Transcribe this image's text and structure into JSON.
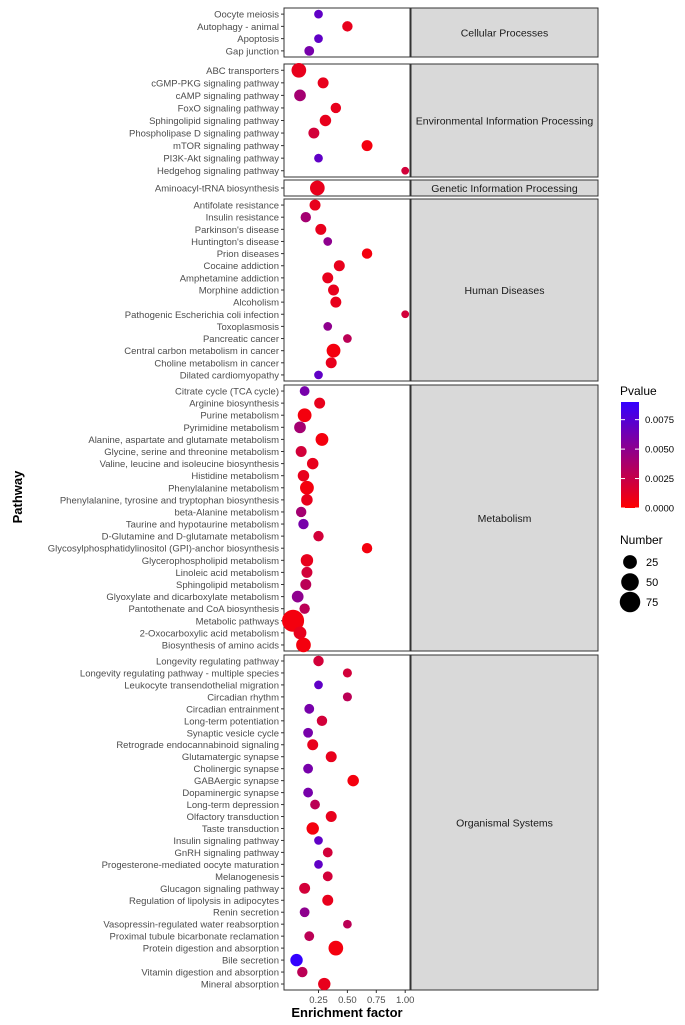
{
  "chart_data": {
    "type": "scatter",
    "title": "",
    "xlabel": "Enrichment factor",
    "ylabel": "Pathway",
    "xlim": [
      0.0,
      1.0
    ],
    "xticks": [
      0.25,
      0.5,
      0.75,
      1.0
    ],
    "xtick_labels": [
      "0.25",
      "0.50",
      "0.75",
      "1.00"
    ],
    "grid": false,
    "color_legend": {
      "title": "Pvalue",
      "min": 0.0,
      "max": 0.009,
      "ticks": [
        0.0,
        0.0025,
        0.005,
        0.0075
      ],
      "tick_labels": [
        "0.0000",
        "0.0025",
        "0.0050",
        "0.0075"
      ],
      "low_color": "#ff0000",
      "high_color": "#3300ff"
    },
    "size_legend": {
      "title": "Number",
      "values": [
        25,
        50,
        75
      ],
      "labels": [
        "25",
        "50",
        "75"
      ]
    },
    "panels": [
      {
        "name": "Cellular Processes",
        "pathways": [
          {
            "name": "Oocyte meiosis",
            "ef": 0.25,
            "p": 0.007,
            "n": 5
          },
          {
            "name": "Autophagy - animal",
            "ef": 0.5,
            "p": 0.001,
            "n": 10
          },
          {
            "name": "Apoptosis",
            "ef": 0.25,
            "p": 0.007,
            "n": 5
          },
          {
            "name": "Gap junction",
            "ef": 0.17,
            "p": 0.006,
            "n": 8
          }
        ]
      },
      {
        "name": "Environmental Information Processing",
        "pathways": [
          {
            "name": "ABC transporters",
            "ef": 0.08,
            "p": 0.001,
            "n": 30
          },
          {
            "name": "cGMP-PKG signaling pathway",
            "ef": 0.29,
            "p": 0.001,
            "n": 12
          },
          {
            "name": "cAMP signaling pathway",
            "ef": 0.09,
            "p": 0.004,
            "n": 15
          },
          {
            "name": "FoxO signaling pathway",
            "ef": 0.4,
            "p": 0.001,
            "n": 10
          },
          {
            "name": "Sphingolipid signaling pathway",
            "ef": 0.31,
            "p": 0.001,
            "n": 14
          },
          {
            "name": "Phospholipase D signaling pathway",
            "ef": 0.21,
            "p": 0.002,
            "n": 12
          },
          {
            "name": "mTOR signaling pathway",
            "ef": 0.67,
            "p": 0.0005,
            "n": 12
          },
          {
            "name": "PI3K-Akt signaling pathway",
            "ef": 0.25,
            "p": 0.007,
            "n": 5
          },
          {
            "name": "Hedgehog signaling pathway",
            "ef": 1.0,
            "p": 0.002,
            "n": 3
          }
        ]
      },
      {
        "name": "Genetic Information Processing",
        "pathways": [
          {
            "name": "Aminoacyl-tRNA biosynthesis",
            "ef": 0.24,
            "p": 0.001,
            "n": 30
          }
        ]
      },
      {
        "name": "Human Diseases",
        "pathways": [
          {
            "name": "Antifolate resistance",
            "ef": 0.22,
            "p": 0.001,
            "n": 12
          },
          {
            "name": "Insulin resistance",
            "ef": 0.14,
            "p": 0.004,
            "n": 10
          },
          {
            "name": "Parkinson's disease",
            "ef": 0.27,
            "p": 0.001,
            "n": 12
          },
          {
            "name": "Huntington's disease",
            "ef": 0.33,
            "p": 0.005,
            "n": 5
          },
          {
            "name": "Prion diseases",
            "ef": 0.67,
            "p": 0.0005,
            "n": 10
          },
          {
            "name": "Cocaine addiction",
            "ef": 0.43,
            "p": 0.001,
            "n": 12
          },
          {
            "name": "Amphetamine addiction",
            "ef": 0.33,
            "p": 0.001,
            "n": 12
          },
          {
            "name": "Morphine addiction",
            "ef": 0.38,
            "p": 0.001,
            "n": 12
          },
          {
            "name": "Alcoholism",
            "ef": 0.4,
            "p": 0.001,
            "n": 12
          },
          {
            "name": "Pathogenic Escherichia coli infection",
            "ef": 1.0,
            "p": 0.002,
            "n": 3
          },
          {
            "name": "Toxoplasmosis",
            "ef": 0.33,
            "p": 0.005,
            "n": 5
          },
          {
            "name": "Pancreatic cancer",
            "ef": 0.5,
            "p": 0.003,
            "n": 5
          },
          {
            "name": "Central carbon metabolism in cancer",
            "ef": 0.38,
            "p": 0.0005,
            "n": 25
          },
          {
            "name": "Choline metabolism in cancer",
            "ef": 0.36,
            "p": 0.001,
            "n": 12
          },
          {
            "name": "Dilated cardiomyopathy",
            "ef": 0.25,
            "p": 0.007,
            "n": 5
          }
        ]
      },
      {
        "name": "Metabolism",
        "pathways": [
          {
            "name": "Citrate cycle (TCA cycle)",
            "ef": 0.13,
            "p": 0.006,
            "n": 8
          },
          {
            "name": "Arginine biosynthesis",
            "ef": 0.26,
            "p": 0.001,
            "n": 12
          },
          {
            "name": "Purine metabolism",
            "ef": 0.13,
            "p": 0.0005,
            "n": 25
          },
          {
            "name": "Pyrimidine metabolism",
            "ef": 0.09,
            "p": 0.004,
            "n": 15
          },
          {
            "name": "Alanine, aspartate and glutamate metabolism",
            "ef": 0.28,
            "p": 0.0005,
            "n": 20
          },
          {
            "name": "Glycine, serine and threonine metabolism",
            "ef": 0.1,
            "p": 0.002,
            "n": 12
          },
          {
            "name": "Valine, leucine and isoleucine biosynthesis",
            "ef": 0.2,
            "p": 0.001,
            "n": 14
          },
          {
            "name": "Histidine metabolism",
            "ef": 0.12,
            "p": 0.001,
            "n": 14
          },
          {
            "name": "Phenylalanine metabolism",
            "ef": 0.15,
            "p": 0.0005,
            "n": 25
          },
          {
            "name": "Phenylalanine, tyrosine and tryptophan biosynthesis",
            "ef": 0.15,
            "p": 0.001,
            "n": 14
          },
          {
            "name": "beta-Alanine metabolism",
            "ef": 0.1,
            "p": 0.004,
            "n": 10
          },
          {
            "name": "Taurine and hypotaurine metabolism",
            "ef": 0.12,
            "p": 0.006,
            "n": 10
          },
          {
            "name": "D-Glutamine and D-glutamate metabolism",
            "ef": 0.25,
            "p": 0.002,
            "n": 10
          },
          {
            "name": "Glycosylphosphatidylinositol (GPI)-anchor biosynthesis",
            "ef": 0.67,
            "p": 0.0005,
            "n": 10
          },
          {
            "name": "Glycerophospholipid metabolism",
            "ef": 0.15,
            "p": 0.001,
            "n": 18
          },
          {
            "name": "Linoleic acid metabolism",
            "ef": 0.15,
            "p": 0.002,
            "n": 12
          },
          {
            "name": "Sphingolipid metabolism",
            "ef": 0.14,
            "p": 0.003,
            "n": 12
          },
          {
            "name": "Glyoxylate and dicarboxylate metabolism",
            "ef": 0.07,
            "p": 0.005,
            "n": 15
          },
          {
            "name": "Pantothenate and CoA biosynthesis",
            "ef": 0.13,
            "p": 0.003,
            "n": 10
          },
          {
            "name": "Metabolic pathways",
            "ef": 0.03,
            "p": 0.0005,
            "n": 90
          },
          {
            "name": "2-Oxocarboxylic acid metabolism",
            "ef": 0.09,
            "p": 0.001,
            "n": 20
          },
          {
            "name": "Biosynthesis of amino acids",
            "ef": 0.12,
            "p": 0.0005,
            "n": 30
          }
        ]
      },
      {
        "name": "Organismal Systems",
        "pathways": [
          {
            "name": "Longevity regulating pathway",
            "ef": 0.25,
            "p": 0.002,
            "n": 10
          },
          {
            "name": "Longevity regulating pathway - multiple species",
            "ef": 0.5,
            "p": 0.002,
            "n": 6
          },
          {
            "name": "Leukocyte transendothelial migration",
            "ef": 0.25,
            "p": 0.007,
            "n": 5
          },
          {
            "name": "Circadian rhythm",
            "ef": 0.5,
            "p": 0.003,
            "n": 6
          },
          {
            "name": "Circadian entrainment",
            "ef": 0.17,
            "p": 0.006,
            "n": 8
          },
          {
            "name": "Long-term potentiation",
            "ef": 0.28,
            "p": 0.002,
            "n": 10
          },
          {
            "name": "Synaptic vesicle cycle",
            "ef": 0.16,
            "p": 0.006,
            "n": 8
          },
          {
            "name": "Retrograde endocannabinoid signaling",
            "ef": 0.2,
            "p": 0.001,
            "n": 12
          },
          {
            "name": "Glutamatergic synapse",
            "ef": 0.36,
            "p": 0.001,
            "n": 12
          },
          {
            "name": "Cholinergic synapse",
            "ef": 0.16,
            "p": 0.006,
            "n": 8
          },
          {
            "name": "GABAergic synapse",
            "ef": 0.55,
            "p": 0.0005,
            "n": 14
          },
          {
            "name": "Dopaminergic synapse",
            "ef": 0.16,
            "p": 0.006,
            "n": 8
          },
          {
            "name": "Long-term depression",
            "ef": 0.22,
            "p": 0.003,
            "n": 8
          },
          {
            "name": "Olfactory transduction",
            "ef": 0.36,
            "p": 0.001,
            "n": 12
          },
          {
            "name": "Taste transduction",
            "ef": 0.2,
            "p": 0.0005,
            "n": 18
          },
          {
            "name": "Insulin signaling pathway",
            "ef": 0.25,
            "p": 0.007,
            "n": 5
          },
          {
            "name": "GnRH signaling pathway",
            "ef": 0.33,
            "p": 0.002,
            "n": 8
          },
          {
            "name": "Progesterone-mediated oocyte maturation",
            "ef": 0.25,
            "p": 0.007,
            "n": 5
          },
          {
            "name": "Melanogenesis",
            "ef": 0.33,
            "p": 0.002,
            "n": 8
          },
          {
            "name": "Glucagon signaling pathway",
            "ef": 0.13,
            "p": 0.002,
            "n": 12
          },
          {
            "name": "Regulation of lipolysis in adipocytes",
            "ef": 0.33,
            "p": 0.001,
            "n": 12
          },
          {
            "name": "Renin secretion",
            "ef": 0.13,
            "p": 0.005,
            "n": 8
          },
          {
            "name": "Vasopressin-regulated water reabsorption",
            "ef": 0.5,
            "p": 0.003,
            "n": 5
          },
          {
            "name": "Proximal tubule bicarbonate reclamation",
            "ef": 0.17,
            "p": 0.003,
            "n": 8
          },
          {
            "name": "Protein digestion and absorption",
            "ef": 0.4,
            "p": 0.0005,
            "n": 30
          },
          {
            "name": "Bile secretion",
            "ef": 0.06,
            "p": 0.009,
            "n": 18
          },
          {
            "name": "Vitamin digestion and absorption",
            "ef": 0.11,
            "p": 0.003,
            "n": 10
          },
          {
            "name": "Mineral absorption",
            "ef": 0.3,
            "p": 0.001,
            "n": 18
          }
        ]
      }
    ]
  }
}
